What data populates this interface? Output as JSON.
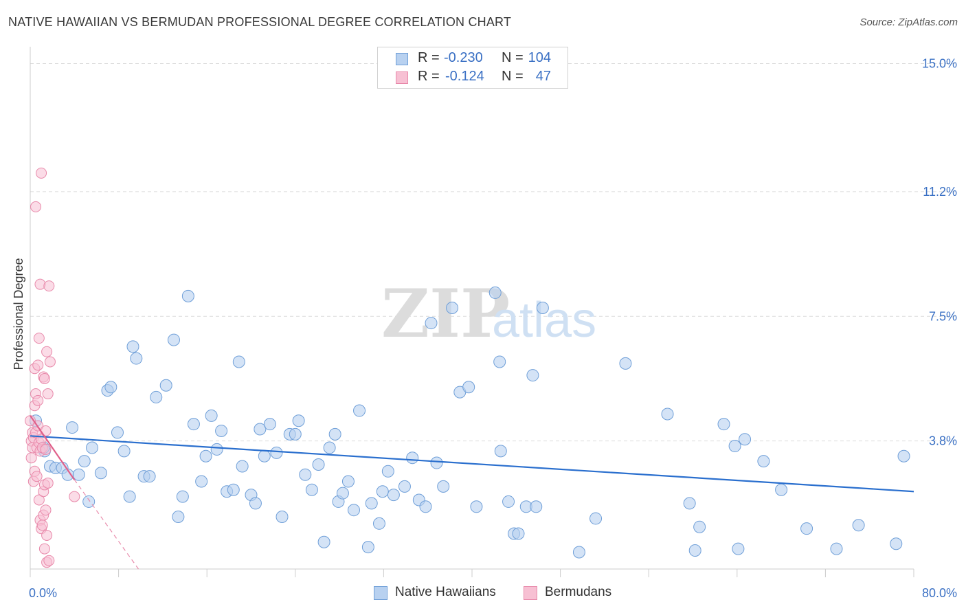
{
  "header": {
    "title": "NATIVE HAWAIIAN VS BERMUDAN PROFESSIONAL DEGREE CORRELATION CHART",
    "source": "Source: ZipAtlas.com"
  },
  "legend_top": {
    "rows": [
      {
        "r_label": "R =",
        "r_value": "-0.230",
        "n_label": "N =",
        "n_value": "104"
      },
      {
        "r_label": "R =",
        "r_value": "-0.124",
        "n_label": "N =",
        "n_value": "47"
      }
    ]
  },
  "legend_bottom": {
    "items": [
      {
        "label": "Native Hawaiians"
      },
      {
        "label": "Bermudans"
      }
    ]
  },
  "watermark": {
    "zip": "ZIP",
    "atlas": "atlas"
  },
  "colors": {
    "blue_fill": "#b8d1f0",
    "blue_stroke": "#6f9fd8",
    "blue_line": "#2a6fce",
    "pink_fill": "#f7c0d3",
    "pink_stroke": "#e889aa",
    "pink_line": "#e0608a",
    "tick_label": "#3a70c4",
    "grid": "#dcdcdc"
  },
  "chart_data": {
    "type": "scatter",
    "title": "NATIVE HAWAIIAN VS BERMUDAN PROFESSIONAL DEGREE CORRELATION CHART",
    "xlabel": "",
    "ylabel": "Professional Degree",
    "xlim": [
      0,
      80
    ],
    "ylim": [
      0,
      15.5
    ],
    "x_tick_labels": [
      "0.0%",
      "80.0%"
    ],
    "y_ticks": [
      3.8,
      7.5,
      11.2,
      15.0
    ],
    "y_tick_labels": [
      "3.8%",
      "7.5%",
      "11.2%",
      "15.0%"
    ],
    "grid": true,
    "series": [
      {
        "name": "Native Hawaiians",
        "R": -0.23,
        "N": 104,
        "trend": {
          "x": [
            0,
            80
          ],
          "y": [
            3.95,
            2.3
          ]
        },
        "points": [
          [
            0.5,
            4.4
          ],
          [
            1.3,
            3.5
          ],
          [
            1.2,
            3.6
          ],
          [
            1.8,
            3.05
          ],
          [
            2.3,
            3.0
          ],
          [
            2.9,
            3.0
          ],
          [
            3.4,
            2.8
          ],
          [
            3.8,
            4.2
          ],
          [
            4.4,
            2.8
          ],
          [
            4.9,
            3.2
          ],
          [
            5.3,
            2.0
          ],
          [
            5.6,
            3.6
          ],
          [
            6.4,
            2.85
          ],
          [
            7.0,
            5.3
          ],
          [
            7.3,
            5.4
          ],
          [
            7.9,
            4.05
          ],
          [
            8.5,
            3.5
          ],
          [
            9.0,
            2.15
          ],
          [
            9.3,
            6.6
          ],
          [
            9.6,
            6.25
          ],
          [
            10.3,
            2.75
          ],
          [
            10.8,
            2.75
          ],
          [
            11.4,
            5.1
          ],
          [
            12.3,
            5.45
          ],
          [
            13.0,
            6.8
          ],
          [
            13.4,
            1.55
          ],
          [
            13.8,
            2.15
          ],
          [
            14.3,
            8.1
          ],
          [
            14.8,
            4.3
          ],
          [
            15.5,
            2.6
          ],
          [
            15.9,
            3.35
          ],
          [
            16.4,
            4.55
          ],
          [
            16.9,
            3.55
          ],
          [
            17.3,
            4.1
          ],
          [
            17.8,
            2.3
          ],
          [
            18.4,
            2.35
          ],
          [
            18.9,
            6.15
          ],
          [
            19.2,
            3.05
          ],
          [
            20.0,
            2.2
          ],
          [
            20.4,
            1.95
          ],
          [
            20.8,
            4.15
          ],
          [
            21.2,
            3.35
          ],
          [
            21.7,
            4.3
          ],
          [
            22.3,
            3.45
          ],
          [
            22.8,
            1.55
          ],
          [
            23.5,
            4.0
          ],
          [
            24.0,
            4.0
          ],
          [
            24.3,
            4.4
          ],
          [
            24.9,
            2.8
          ],
          [
            25.5,
            2.35
          ],
          [
            26.1,
            3.1
          ],
          [
            26.6,
            0.8
          ],
          [
            27.1,
            3.6
          ],
          [
            27.6,
            4.0
          ],
          [
            27.9,
            2.0
          ],
          [
            28.3,
            2.25
          ],
          [
            28.8,
            2.6
          ],
          [
            29.3,
            1.75
          ],
          [
            29.8,
            4.7
          ],
          [
            30.6,
            0.65
          ],
          [
            30.9,
            1.95
          ],
          [
            31.6,
            1.35
          ],
          [
            31.9,
            2.3
          ],
          [
            32.4,
            2.9
          ],
          [
            32.9,
            2.2
          ],
          [
            33.9,
            2.45
          ],
          [
            34.6,
            3.3
          ],
          [
            35.2,
            2.05
          ],
          [
            35.8,
            1.85
          ],
          [
            36.3,
            7.3
          ],
          [
            36.8,
            3.15
          ],
          [
            37.4,
            2.45
          ],
          [
            38.2,
            7.75
          ],
          [
            38.9,
            5.25
          ],
          [
            39.7,
            5.4
          ],
          [
            40.4,
            1.85
          ],
          [
            42.1,
            8.2
          ],
          [
            42.5,
            6.15
          ],
          [
            42.6,
            3.5
          ],
          [
            43.3,
            2.0
          ],
          [
            43.8,
            1.05
          ],
          [
            44.2,
            1.05
          ],
          [
            44.9,
            1.85
          ],
          [
            45.5,
            5.75
          ],
          [
            45.8,
            1.85
          ],
          [
            46.4,
            7.75
          ],
          [
            49.7,
            0.5
          ],
          [
            51.2,
            1.5
          ],
          [
            53.9,
            6.1
          ],
          [
            57.7,
            4.6
          ],
          [
            59.7,
            1.95
          ],
          [
            60.2,
            0.55
          ],
          [
            60.6,
            1.25
          ],
          [
            62.8,
            4.3
          ],
          [
            63.8,
            3.65
          ],
          [
            64.1,
            0.6
          ],
          [
            64.7,
            3.85
          ],
          [
            66.4,
            3.2
          ],
          [
            68.0,
            2.35
          ],
          [
            70.3,
            1.2
          ],
          [
            73.0,
            0.6
          ],
          [
            75.0,
            1.3
          ],
          [
            78.4,
            0.75
          ],
          [
            79.1,
            3.35
          ]
        ]
      },
      {
        "name": "Bermudans",
        "R": -0.124,
        "N": 47,
        "trend": {
          "x": [
            0,
            4.0
          ],
          "y": [
            4.55,
            2.65
          ]
        },
        "trend_extended": {
          "x": [
            4.0,
            9.8
          ],
          "y": [
            2.65,
            0.0
          ]
        },
        "points": [
          [
            0.0,
            4.4
          ],
          [
            0.1,
            3.8
          ],
          [
            0.1,
            3.3
          ],
          [
            0.2,
            3.6
          ],
          [
            0.2,
            4.05
          ],
          [
            0.3,
            3.9
          ],
          [
            0.3,
            2.6
          ],
          [
            0.4,
            4.85
          ],
          [
            0.4,
            5.95
          ],
          [
            0.4,
            2.9
          ],
          [
            0.5,
            5.2
          ],
          [
            0.5,
            4.05
          ],
          [
            0.6,
            3.6
          ],
          [
            0.6,
            2.75
          ],
          [
            0.7,
            5.0
          ],
          [
            0.7,
            4.25
          ],
          [
            0.7,
            6.05
          ],
          [
            0.8,
            6.85
          ],
          [
            0.8,
            3.75
          ],
          [
            0.8,
            2.05
          ],
          [
            0.9,
            8.45
          ],
          [
            0.9,
            3.5
          ],
          [
            0.9,
            1.45
          ],
          [
            1.0,
            11.75
          ],
          [
            1.0,
            3.85
          ],
          [
            1.0,
            1.2
          ],
          [
            1.1,
            3.6
          ],
          [
            1.1,
            1.3
          ],
          [
            1.2,
            5.7
          ],
          [
            1.2,
            2.3
          ],
          [
            1.2,
            1.6
          ],
          [
            1.3,
            5.65
          ],
          [
            1.3,
            2.5
          ],
          [
            1.3,
            0.6
          ],
          [
            1.4,
            4.1
          ],
          [
            1.4,
            1.75
          ],
          [
            1.4,
            3.55
          ],
          [
            1.5,
            6.45
          ],
          [
            1.5,
            1.0
          ],
          [
            1.5,
            0.2
          ],
          [
            1.6,
            5.2
          ],
          [
            1.6,
            2.55
          ],
          [
            1.7,
            0.25
          ],
          [
            1.7,
            8.4
          ],
          [
            1.8,
            6.15
          ],
          [
            4.0,
            2.15
          ],
          [
            0.5,
            10.75
          ]
        ]
      }
    ]
  }
}
